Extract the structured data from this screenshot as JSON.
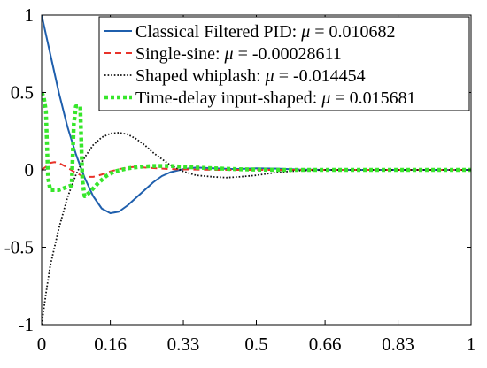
{
  "chart_data": {
    "type": "line",
    "title": "",
    "xlabel": "",
    "ylabel": "",
    "xlim": [
      0,
      1
    ],
    "ylim": [
      -1,
      1
    ],
    "grid": false,
    "legend_position": "top-right",
    "xticks": [
      0,
      0.16,
      0.33,
      0.5,
      0.66,
      0.83,
      1
    ],
    "xtick_labels": [
      "0",
      "0.16",
      "0.33",
      "0.5",
      "0.66",
      "0.83",
      "1"
    ],
    "yticks": [
      1,
      0.5,
      0,
      -0.5,
      -1
    ],
    "ytick_labels": [
      "1",
      "0.5",
      "0",
      "-0.5",
      "-1"
    ],
    "series": [
      {
        "name": "Classical Filtered PID:",
        "mu_symbol": "μ",
        "mu_value": "= 0.010682",
        "color": "#1f5fad",
        "style": "solid",
        "x": [
          0,
          0.02,
          0.04,
          0.06,
          0.08,
          0.1,
          0.12,
          0.14,
          0.16,
          0.18,
          0.2,
          0.22,
          0.24,
          0.26,
          0.28,
          0.3,
          0.33,
          0.36,
          0.4,
          0.45,
          0.5,
          0.55,
          0.6,
          0.66,
          0.75,
          0.83,
          1
        ],
        "y": [
          1.0,
          0.75,
          0.5,
          0.28,
          0.1,
          -0.05,
          -0.17,
          -0.25,
          -0.28,
          -0.27,
          -0.23,
          -0.18,
          -0.13,
          -0.08,
          -0.04,
          -0.015,
          0.005,
          0.015,
          0.01,
          0.005,
          0.01,
          0.008,
          0.002,
          0.0,
          0.0,
          0.0,
          0.0
        ]
      },
      {
        "name": "Single-sine:",
        "mu_symbol": "μ",
        "mu_value": "= -0.00028611",
        "color": "#e8332a",
        "style": "dashed",
        "x": [
          0,
          0.01,
          0.02,
          0.03,
          0.04,
          0.06,
          0.08,
          0.1,
          0.12,
          0.14,
          0.16,
          0.18,
          0.2,
          0.22,
          0.24,
          0.27,
          0.3,
          0.33,
          0.36,
          0.4,
          0.45,
          0.5,
          0.55,
          0.6,
          0.66,
          0.75,
          0.83,
          1
        ],
        "y": [
          0,
          0.02,
          0.045,
          0.05,
          0.045,
          0.015,
          -0.02,
          -0.045,
          -0.045,
          -0.03,
          -0.01,
          0.005,
          0.015,
          0.02,
          0.015,
          0.01,
          0.005,
          0.003,
          0.002,
          0.0,
          0.0,
          0.0,
          0.0,
          0.0,
          0.0,
          0.0,
          0.0,
          0.0
        ]
      },
      {
        "name": "Shaped whiplash:",
        "mu_symbol": "μ",
        "mu_value": "= -0.014454",
        "color": "#111111",
        "style": "dotted",
        "x": [
          0,
          0.01,
          0.02,
          0.04,
          0.06,
          0.08,
          0.1,
          0.12,
          0.14,
          0.16,
          0.18,
          0.2,
          0.22,
          0.24,
          0.26,
          0.28,
          0.3,
          0.33,
          0.36,
          0.4,
          0.43,
          0.46,
          0.5,
          0.55,
          0.6,
          0.66,
          0.75,
          0.83,
          1
        ],
        "y": [
          -1.0,
          -0.8,
          -0.62,
          -0.38,
          -0.18,
          -0.03,
          0.08,
          0.16,
          0.21,
          0.235,
          0.24,
          0.23,
          0.2,
          0.16,
          0.11,
          0.07,
          0.03,
          -0.01,
          -0.035,
          -0.045,
          -0.05,
          -0.045,
          -0.035,
          -0.015,
          -0.005,
          0.0,
          0.0,
          0.0,
          0.0
        ]
      },
      {
        "name": "Time-delay input-shaped:",
        "mu_symbol": "μ",
        "mu_value": "= 0.015681",
        "color": "#37e62b",
        "style": "thick-dotted",
        "x": [
          0,
          0.005,
          0.01,
          0.015,
          0.02,
          0.03,
          0.04,
          0.05,
          0.06,
          0.07,
          0.075,
          0.08,
          0.09,
          0.095,
          0.1,
          0.11,
          0.12,
          0.13,
          0.15,
          0.17,
          0.2,
          0.23,
          0.26,
          0.3,
          0.33,
          0.36,
          0.4,
          0.45,
          0.5,
          0.55,
          0.6,
          0.66,
          0.75,
          0.83,
          1
        ],
        "y": [
          0.5,
          0.47,
          0.38,
          -0.05,
          -0.13,
          -0.13,
          -0.13,
          -0.12,
          -0.11,
          -0.1,
          0.3,
          0.41,
          0.41,
          -0.07,
          -0.17,
          -0.15,
          -0.12,
          -0.09,
          -0.04,
          -0.01,
          0.01,
          0.02,
          0.025,
          0.025,
          0.02,
          0.015,
          0.01,
          0.005,
          0.002,
          0.0,
          0.0,
          0.0,
          0.0,
          0.0,
          0.0
        ]
      }
    ]
  }
}
